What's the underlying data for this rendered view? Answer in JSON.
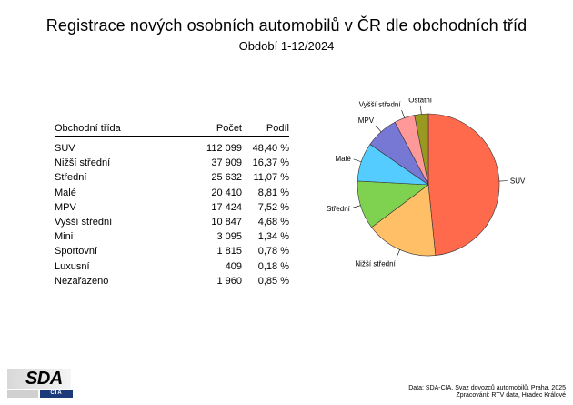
{
  "title": "Registrace nových osobních automobilů v ČR dle obchodních tříd",
  "subtitle": "Období 1-12/2024",
  "table": {
    "headers": [
      "Obchodní třída",
      "Počet",
      "Podíl"
    ],
    "rows": [
      {
        "label": "SUV",
        "count": "112 099",
        "share": "48,40 %"
      },
      {
        "label": "Nižší střední",
        "count": "37 909",
        "share": "16,37 %"
      },
      {
        "label": "Střední",
        "count": "25 632",
        "share": "11,07 %"
      },
      {
        "label": "Malé",
        "count": "20 410",
        "share": "8,81 %"
      },
      {
        "label": "MPV",
        "count": "17 424",
        "share": "7,52 %"
      },
      {
        "label": "Vyšší střední",
        "count": "10 847",
        "share": "4,68 %"
      },
      {
        "label": "Mini",
        "count": "3 095",
        "share": "1,34 %"
      },
      {
        "label": "Sportovní",
        "count": "1 815",
        "share": "0,78 %"
      },
      {
        "label": "Luxusní",
        "count": "409",
        "share": "0,18 %"
      },
      {
        "label": "Nezařazeno",
        "count": "1 960",
        "share": "0,85 %"
      }
    ]
  },
  "chart_data": {
    "type": "pie",
    "slices": [
      {
        "label": "SUV",
        "value": 112099,
        "color": "#ff6a4d"
      },
      {
        "label": "Nižší střední",
        "value": 37909,
        "color": "#ffbf66"
      },
      {
        "label": "Střední",
        "value": 25632,
        "color": "#7fd24f"
      },
      {
        "label": "Malé",
        "value": 20410,
        "color": "#55ccff"
      },
      {
        "label": "MPV",
        "value": 17424,
        "color": "#7777d4"
      },
      {
        "label": "Vyšší střední",
        "value": 10847,
        "color": "#ff9999"
      },
      {
        "label": "Ostatní",
        "value": 7279,
        "color": "#999922"
      }
    ]
  },
  "logo": {
    "main": "SDA",
    "sub": "CIA"
  },
  "source": {
    "line1": "Data: SDA-CIA, Svaz dovozců automobilů, Praha, 2025",
    "line2": "Zpracování: RTV data, Hradec Králové"
  }
}
